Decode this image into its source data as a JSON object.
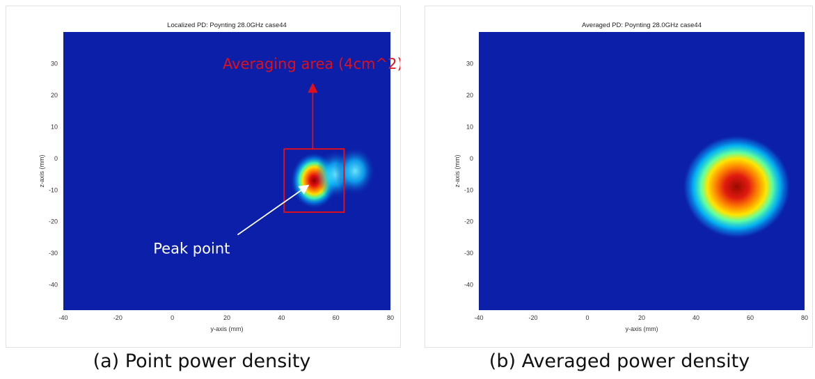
{
  "colors": {
    "low": "#0b1fa8",
    "annotation_red": "#e0101a",
    "annotation_white": "#ffffff"
  },
  "chart_data": [
    {
      "type": "heatmap",
      "title": "Localized PD:  Poynting 28.0GHz case44",
      "xlabel": "y-axis (mm)",
      "ylabel": "z-axis (mm)",
      "xlim": [
        -40,
        80
      ],
      "ylim": [
        -48,
        40
      ],
      "xticks": [
        -40,
        -20,
        0,
        20,
        40,
        60,
        80
      ],
      "yticks": [
        30,
        20,
        10,
        0,
        -10,
        -20,
        -30,
        -40
      ],
      "colormap": "jet",
      "hotspots": [
        {
          "y": 52,
          "z": -7,
          "intensity": 1.0
        },
        {
          "y": 60,
          "z": -5,
          "intensity": 0.45
        },
        {
          "y": 67,
          "z": -4,
          "intensity": 0.35
        }
      ],
      "averaging_box": {
        "y": [
          41,
          63
        ],
        "z": [
          -17,
          3
        ]
      },
      "annotations": [
        {
          "text": "Averaging area (4cm^2)"
        },
        {
          "text": "Peak point"
        }
      ],
      "caption": "(a) Point power density"
    },
    {
      "type": "heatmap",
      "title": "Averaged PD:  Poynting 28.0GHz case44",
      "xlabel": "y-axis (mm)",
      "ylabel": "z-axis (mm)",
      "xlim": [
        -40,
        80
      ],
      "ylim": [
        -48,
        40
      ],
      "xticks": [
        -40,
        -20,
        0,
        20,
        40,
        60,
        80
      ],
      "yticks": [
        30,
        20,
        10,
        0,
        -10,
        -20,
        -30,
        -40
      ],
      "colormap": "jet",
      "hotspots": [
        {
          "y": 55,
          "z": -9,
          "intensity": 1.0
        }
      ],
      "caption": "(b) Averaged power density"
    }
  ]
}
